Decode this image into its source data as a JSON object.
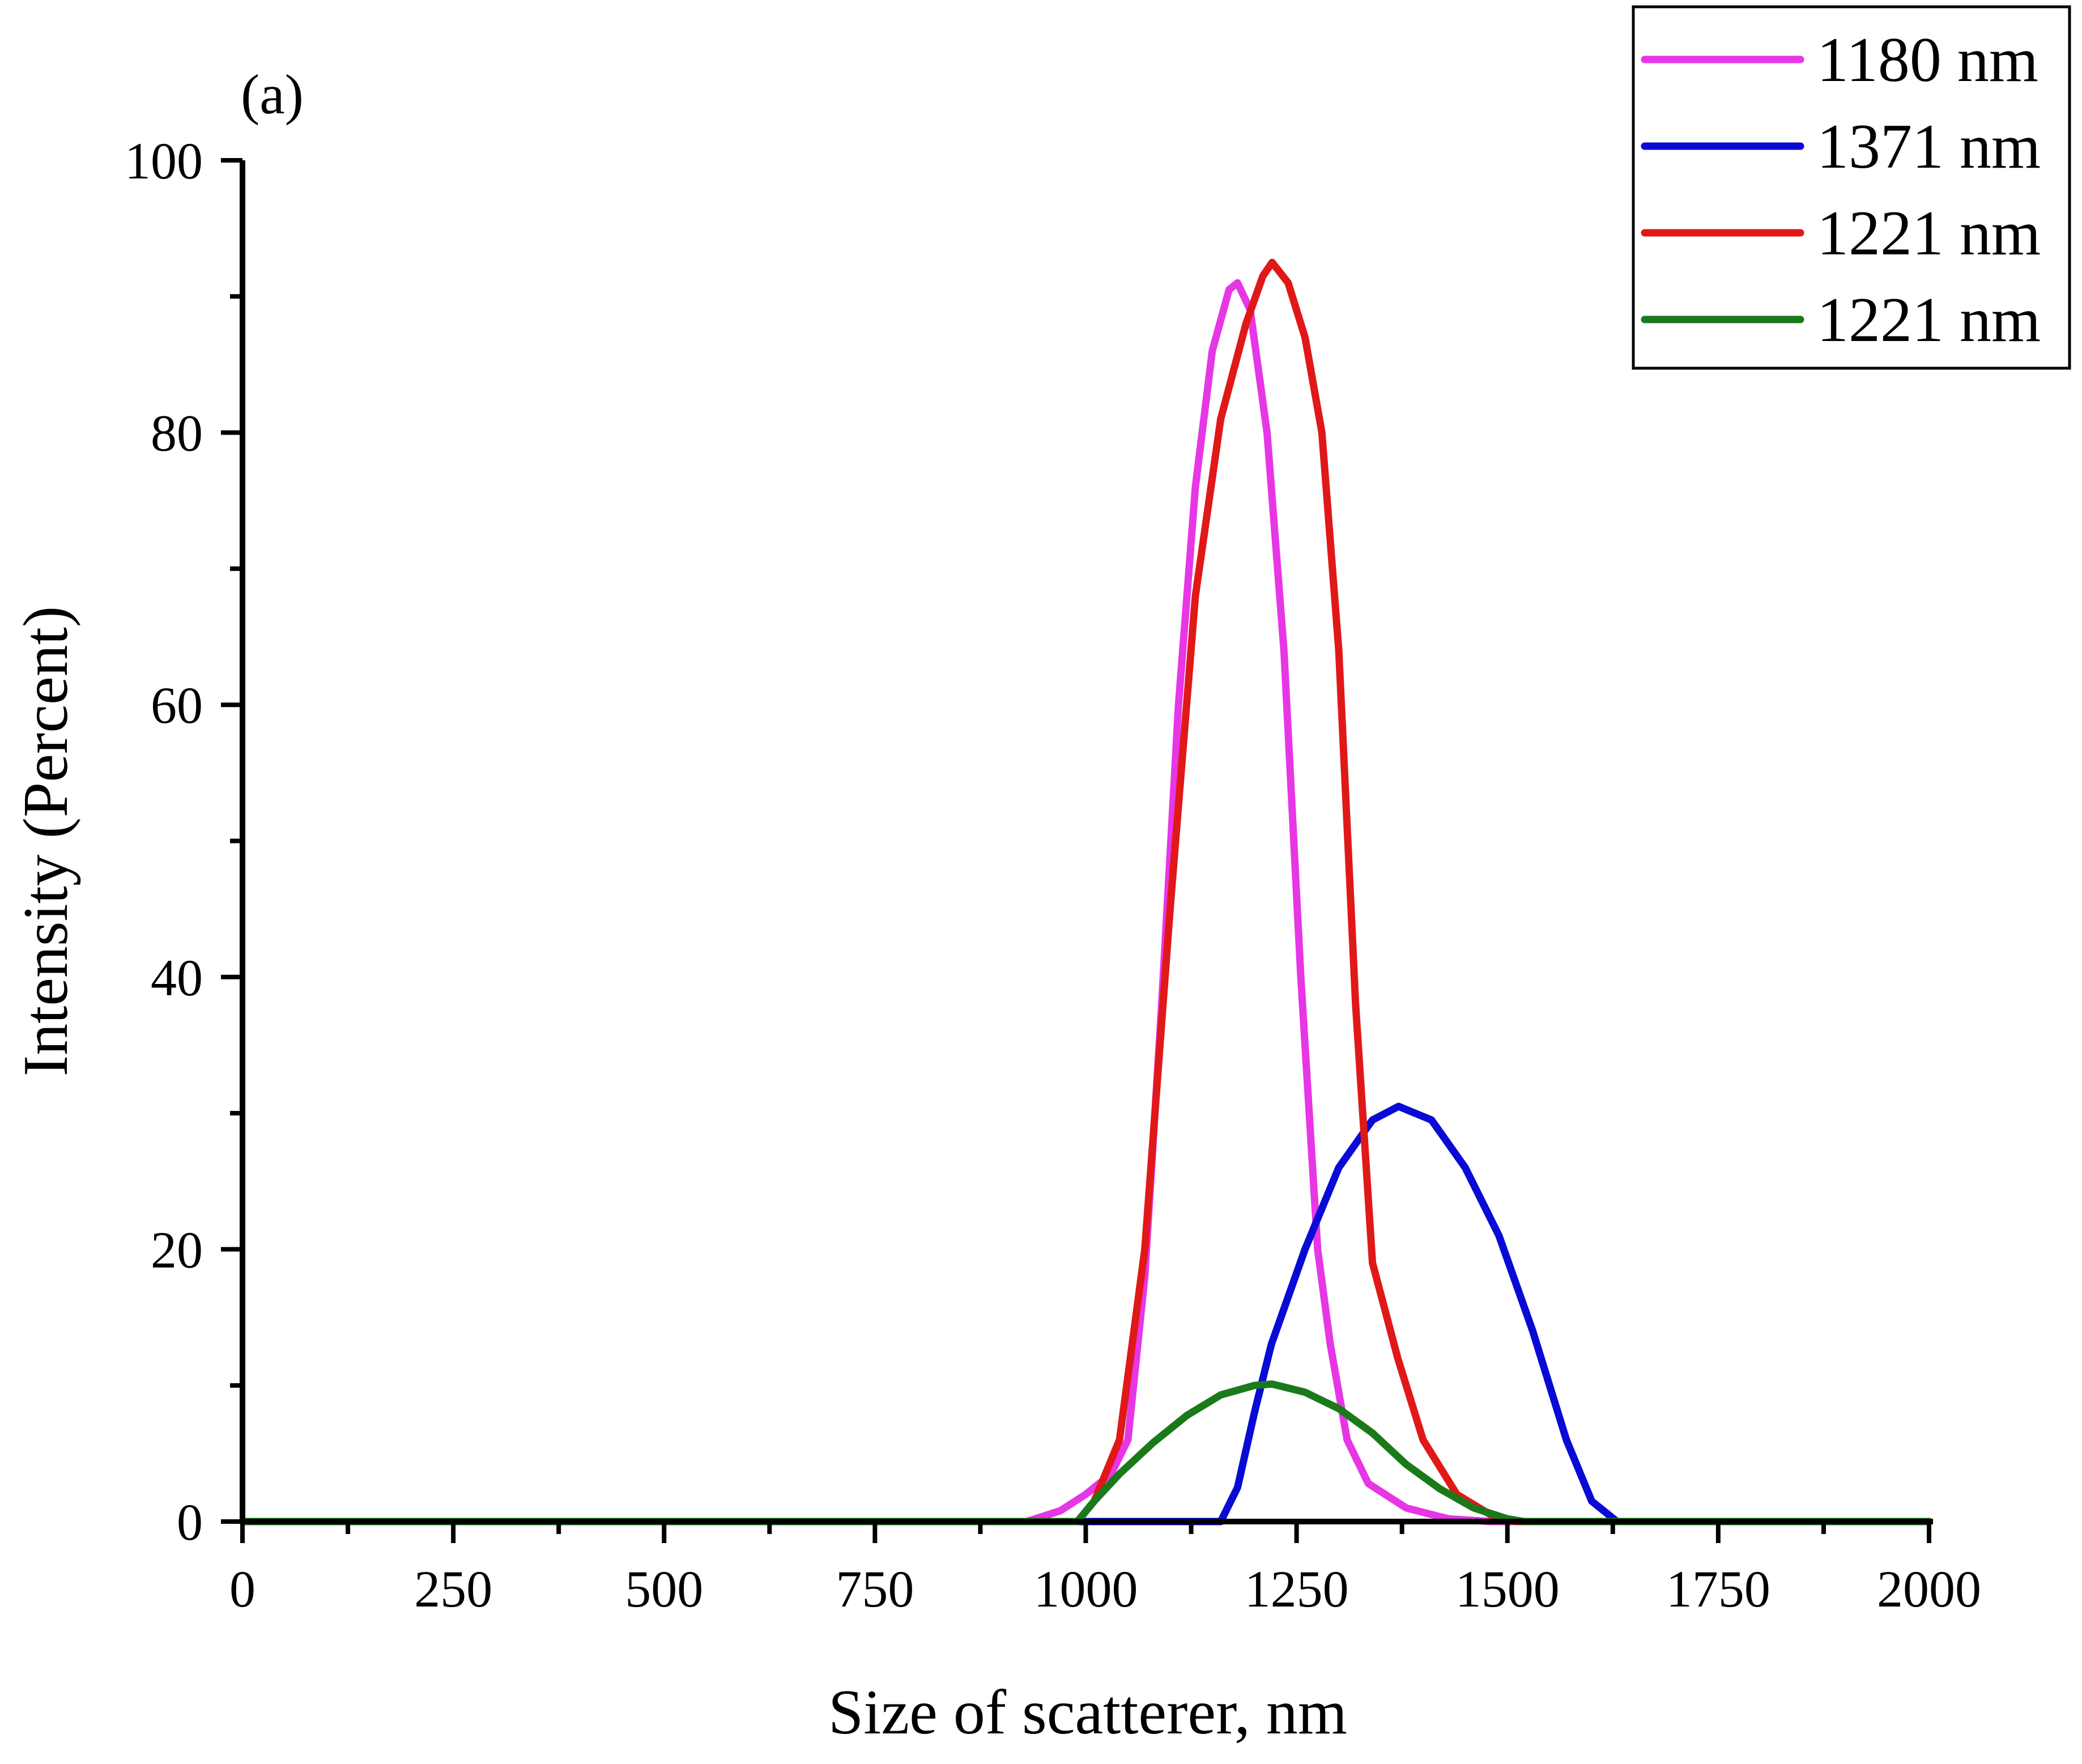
{
  "chart_data": {
    "type": "line",
    "panel_label": "(a)",
    "title": "",
    "xlabel": "Size of scatterer, nm",
    "ylabel": "Intensity (Percent)",
    "xlim": [
      0,
      2000
    ],
    "ylim": [
      0,
      100
    ],
    "x_ticks": [
      0,
      250,
      500,
      750,
      1000,
      1250,
      1500,
      1750,
      2000
    ],
    "y_ticks": [
      0,
      20,
      40,
      60,
      80,
      100
    ],
    "x_minor_ticks": [
      125,
      375,
      625,
      875,
      1125,
      1375,
      1625,
      1875
    ],
    "y_minor_ticks": [
      10,
      30,
      50,
      70,
      90
    ],
    "grid": false,
    "legend_position": "top-right",
    "series": [
      {
        "name": "1180 nm",
        "color": "#e636e6",
        "points": [
          [
            0,
            0
          ],
          [
            930,
            0
          ],
          [
            970,
            0.8
          ],
          [
            1000,
            2
          ],
          [
            1030,
            3.5
          ],
          [
            1050,
            6
          ],
          [
            1070,
            18
          ],
          [
            1090,
            38
          ],
          [
            1110,
            60
          ],
          [
            1130,
            76
          ],
          [
            1150,
            86
          ],
          [
            1170,
            90.5
          ],
          [
            1180,
            91
          ],
          [
            1195,
            89
          ],
          [
            1215,
            80
          ],
          [
            1235,
            64
          ],
          [
            1255,
            40
          ],
          [
            1275,
            20
          ],
          [
            1290,
            13
          ],
          [
            1310,
            6
          ],
          [
            1335,
            2.8
          ],
          [
            1380,
            1
          ],
          [
            1430,
            0.2
          ],
          [
            1480,
            0
          ],
          [
            2000,
            0
          ]
        ]
      },
      {
        "name": "1371 nm",
        "color": "#0a0ad6",
        "points": [
          [
            0,
            0
          ],
          [
            1160,
            0
          ],
          [
            1180,
            2.5
          ],
          [
            1200,
            8
          ],
          [
            1220,
            13
          ],
          [
            1260,
            20
          ],
          [
            1300,
            26
          ],
          [
            1340,
            29.5
          ],
          [
            1371,
            30.5
          ],
          [
            1410,
            29.5
          ],
          [
            1450,
            26
          ],
          [
            1490,
            21
          ],
          [
            1530,
            14
          ],
          [
            1570,
            6
          ],
          [
            1600,
            1.5
          ],
          [
            1630,
            0
          ],
          [
            2000,
            0
          ]
        ]
      },
      {
        "name": "1221 nm",
        "color": "#e01818",
        "points": [
          [
            0,
            0
          ],
          [
            990,
            0
          ],
          [
            1010,
            1.5
          ],
          [
            1040,
            6
          ],
          [
            1070,
            20
          ],
          [
            1100,
            45
          ],
          [
            1130,
            68
          ],
          [
            1160,
            81
          ],
          [
            1190,
            88
          ],
          [
            1210,
            91.5
          ],
          [
            1221,
            92.5
          ],
          [
            1240,
            91
          ],
          [
            1260,
            87
          ],
          [
            1280,
            80
          ],
          [
            1300,
            64
          ],
          [
            1320,
            38
          ],
          [
            1340,
            19
          ],
          [
            1370,
            12
          ],
          [
            1400,
            6
          ],
          [
            1440,
            2
          ],
          [
            1480,
            0.5
          ],
          [
            1510,
            0
          ],
          [
            2000,
            0
          ]
        ]
      },
      {
        "name": "1221 nm",
        "color": "#1a7a1a",
        "points": [
          [
            0,
            0
          ],
          [
            990,
            0
          ],
          [
            1010,
            1.5
          ],
          [
            1040,
            3.5
          ],
          [
            1080,
            5.8
          ],
          [
            1120,
            7.8
          ],
          [
            1160,
            9.3
          ],
          [
            1200,
            10
          ],
          [
            1221,
            10.1
          ],
          [
            1260,
            9.5
          ],
          [
            1300,
            8.3
          ],
          [
            1340,
            6.5
          ],
          [
            1380,
            4.2
          ],
          [
            1420,
            2.4
          ],
          [
            1460,
            1
          ],
          [
            1500,
            0.2
          ],
          [
            1520,
            0
          ],
          [
            2000,
            0
          ]
        ]
      }
    ]
  }
}
